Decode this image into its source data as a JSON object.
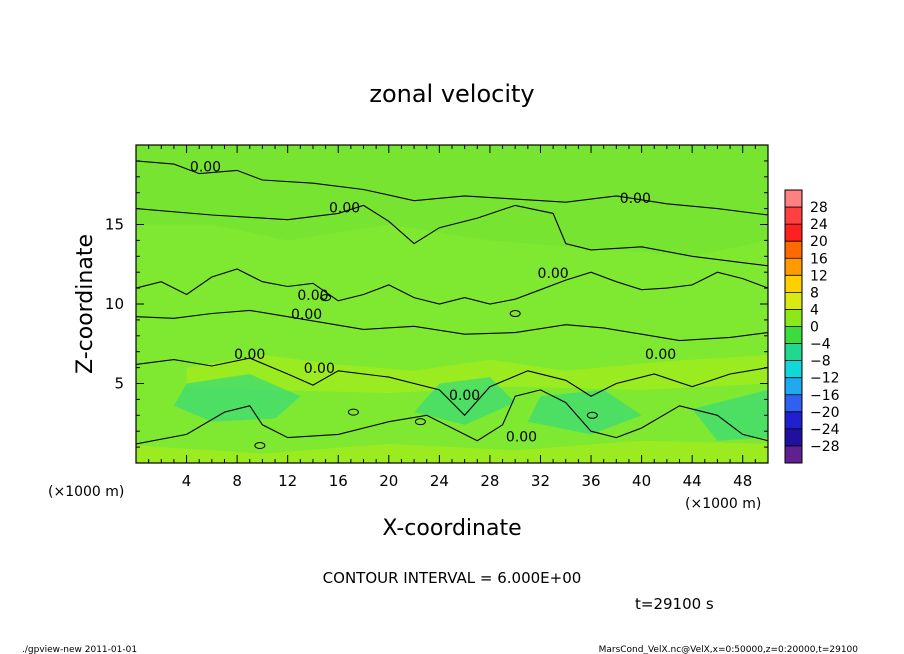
{
  "chart_data": {
    "type": "heatmap",
    "title": "zonal velocity",
    "xlabel": "X-coordinate",
    "ylabel": "Z-coordinate",
    "x_unit": "(×1000 m)",
    "z_unit": "(×1000 m)",
    "xlim": [
      0,
      50
    ],
    "ylim": [
      0,
      20
    ],
    "x_ticks": [
      4,
      8,
      12,
      16,
      20,
      24,
      28,
      32,
      36,
      40,
      44,
      48
    ],
    "y_ticks": [
      5,
      10,
      15
    ],
    "contour_interval_text": "CONTOUR INTERVAL = 6.000E+00",
    "time_text": "t=29100 s",
    "contour_label": "0.00",
    "contour_label_positions": [
      [
        5.5,
        18.6
      ],
      [
        16.5,
        16.0
      ],
      [
        39.5,
        16.6
      ],
      [
        13.5,
        9.3
      ],
      [
        14.0,
        10.5
      ],
      [
        33.0,
        11.9
      ],
      [
        9.0,
        6.8
      ],
      [
        14.5,
        5.9
      ],
      [
        41.5,
        6.8
      ],
      [
        26.0,
        4.2
      ],
      [
        30.5,
        1.6
      ]
    ],
    "colorbar": {
      "levels": [
        "28",
        "24",
        "20",
        "16",
        "12",
        "8",
        "4",
        "0",
        "−4",
        "−8",
        "−12",
        "−16",
        "−20",
        "−24",
        "−28"
      ],
      "colors": [
        "#ff8080",
        "#ff4040",
        "#ff2020",
        "#ff6a00",
        "#ff9a00",
        "#ffd000",
        "#d8ea10",
        "#8ce818",
        "#3cdc3c",
        "#20d890",
        "#10d8d8",
        "#20a8f0",
        "#3060f0",
        "#2020d0",
        "#2010a0",
        "#602090"
      ]
    },
    "field_colors": {
      "base": "#7fe830",
      "upper": "#74e332",
      "light": "#a4ec1c",
      "cool": "#3cdc74"
    }
  },
  "footer": {
    "left": "./gpview-new   2011-01-01",
    "right": "MarsCond_VelX.nc@VelX,x=0:50000,z=0:20000,t=29100"
  }
}
